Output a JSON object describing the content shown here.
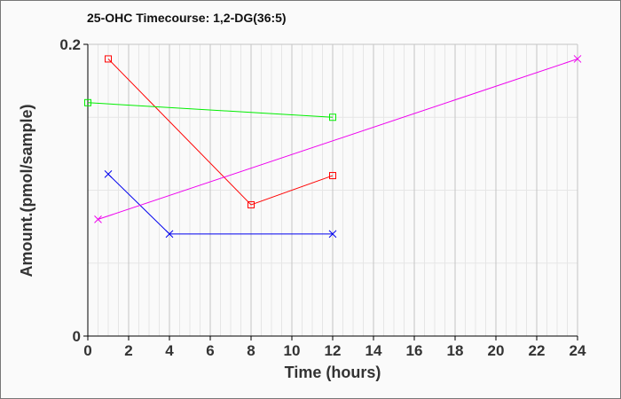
{
  "chart_data": {
    "type": "line",
    "title": "25-OHC Timecourse: 1,2-DG(36:5)",
    "xlabel": "Time (hours)",
    "ylabel": "Amount.(pmol/sample)",
    "xlim": [
      0,
      24
    ],
    "ylim": [
      0,
      0.2
    ],
    "xticks": [
      "0",
      "2",
      "4",
      "6",
      "8",
      "10",
      "12",
      "14",
      "16",
      "18",
      "20",
      "22",
      "24"
    ],
    "yticks": [
      "0",
      "0.2"
    ],
    "grid": true,
    "legend": "none",
    "series": [
      {
        "name": "red",
        "color": "#ff0000",
        "marker": "square",
        "x": [
          1,
          8,
          12
        ],
        "y": [
          0.19,
          0.09,
          0.11
        ]
      },
      {
        "name": "green",
        "color": "#00ee00",
        "marker": "square",
        "x": [
          0,
          12
        ],
        "y": [
          0.16,
          0.15
        ]
      },
      {
        "name": "blue",
        "color": "#0000ee",
        "marker": "x",
        "x": [
          1,
          4,
          12
        ],
        "y": [
          0.111,
          0.07,
          0.07
        ]
      },
      {
        "name": "magenta",
        "color": "#ee00ee",
        "marker": "x",
        "x": [
          0.5,
          24
        ],
        "y": [
          0.08,
          0.19
        ]
      }
    ]
  }
}
